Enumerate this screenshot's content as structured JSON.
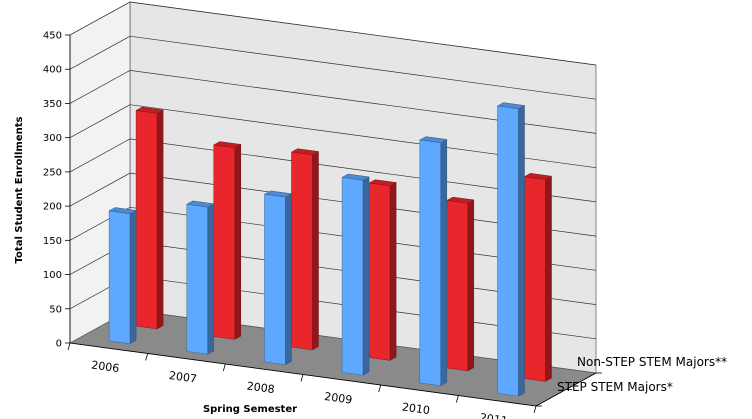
{
  "chart_data": {
    "type": "bar",
    "style": "3d-clustered-depth",
    "categories": [
      "2006",
      "2007",
      "2008",
      "2009",
      "2010",
      "2011"
    ],
    "series": [
      {
        "name": "STEP STEM Majors*",
        "color": "#5ea8ff",
        "values": [
          190,
          215,
          245,
          285,
          355,
          420
        ]
      },
      {
        "name": "Non-STEP STEM Majors**",
        "color": "#e8262c",
        "values": [
          315,
          280,
          285,
          255,
          245,
          295
        ]
      }
    ],
    "xlabel": "Spring Semester",
    "ylabel": "Total Student Enrollments",
    "ylim": [
      0,
      450
    ],
    "yticks": [
      0,
      50,
      100,
      150,
      200,
      250,
      300,
      350,
      400,
      450
    ],
    "grid": true,
    "wall_color": "#e6e6e6",
    "floor_color": "#8a8a8a"
  }
}
